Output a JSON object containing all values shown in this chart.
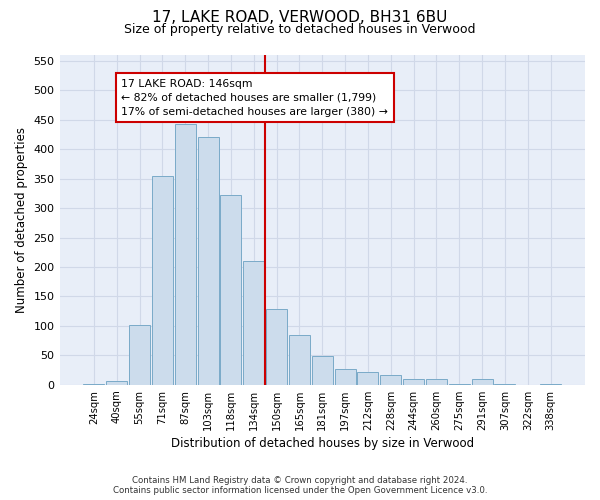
{
  "title": "17, LAKE ROAD, VERWOOD, BH31 6BU",
  "subtitle": "Size of property relative to detached houses in Verwood",
  "xlabel": "Distribution of detached houses by size in Verwood",
  "ylabel": "Number of detached properties",
  "categories": [
    "24sqm",
    "40sqm",
    "55sqm",
    "71sqm",
    "87sqm",
    "103sqm",
    "118sqm",
    "134sqm",
    "150sqm",
    "165sqm",
    "181sqm",
    "197sqm",
    "212sqm",
    "228sqm",
    "244sqm",
    "260sqm",
    "275sqm",
    "291sqm",
    "307sqm",
    "322sqm",
    "338sqm"
  ],
  "values": [
    2,
    6,
    101,
    355,
    443,
    421,
    322,
    210,
    128,
    85,
    49,
    27,
    22,
    16,
    10,
    10,
    2,
    10,
    2,
    0,
    2
  ],
  "bar_color": "#ccdcec",
  "bar_edge_color": "#7aaac8",
  "grid_color": "#d0d8e8",
  "background_color": "#e8eef8",
  "vline_x": 7.5,
  "vline_color": "#cc0000",
  "annotation_text": "17 LAKE ROAD: 146sqm\n← 82% of detached houses are smaller (1,799)\n17% of semi-detached houses are larger (380) →",
  "annotation_box_color": "#cc0000",
  "ylim": [
    0,
    560
  ],
  "yticks": [
    0,
    50,
    100,
    150,
    200,
    250,
    300,
    350,
    400,
    450,
    500,
    550
  ],
  "footer_text": "Contains HM Land Registry data © Crown copyright and database right 2024.\nContains public sector information licensed under the Open Government Licence v3.0.",
  "title_fontsize": 11,
  "subtitle_fontsize": 9,
  "xlabel_fontsize": 8.5,
  "ylabel_fontsize": 8.5,
  "annot_fontsize": 7.8
}
